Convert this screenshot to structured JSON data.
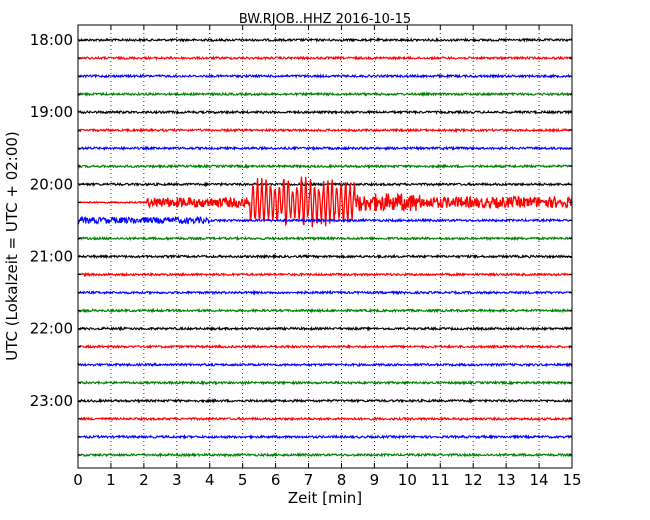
{
  "chart_data": {
    "type": "line",
    "subtype": "dayplot-seismogram",
    "title": "BW.RJOB..HHZ 2016-10-15",
    "xlabel": "Zeit  [min]",
    "ylabel": "UTC (Lokalzeit = UTC + 02:00)",
    "xlim": [
      0,
      15
    ],
    "x_ticks": [
      "0",
      "1",
      "2",
      "3",
      "4",
      "5",
      "6",
      "7",
      "8",
      "9",
      "10",
      "11",
      "12",
      "13",
      "14",
      "15"
    ],
    "y_ticks": [
      "18:00",
      "19:00",
      "20:00",
      "21:00",
      "22:00",
      "23:00"
    ],
    "grid": "vertical dotted at each minute",
    "row_interval_minutes": 15,
    "first_row_time": "18:00",
    "row_colors": [
      "#000000",
      "#ff0000",
      "#0000ff",
      "#008000"
    ],
    "rows": 24,
    "event": {
      "row_index": 9,
      "start_min": 2.1,
      "peak_start_min": 5.2,
      "peak_end_min": 8.4,
      "coda_end_min": 15.0
    },
    "preceding_row_disturbance": {
      "row_index": 10,
      "start_min": 0.0,
      "end_min": 4.0
    }
  }
}
